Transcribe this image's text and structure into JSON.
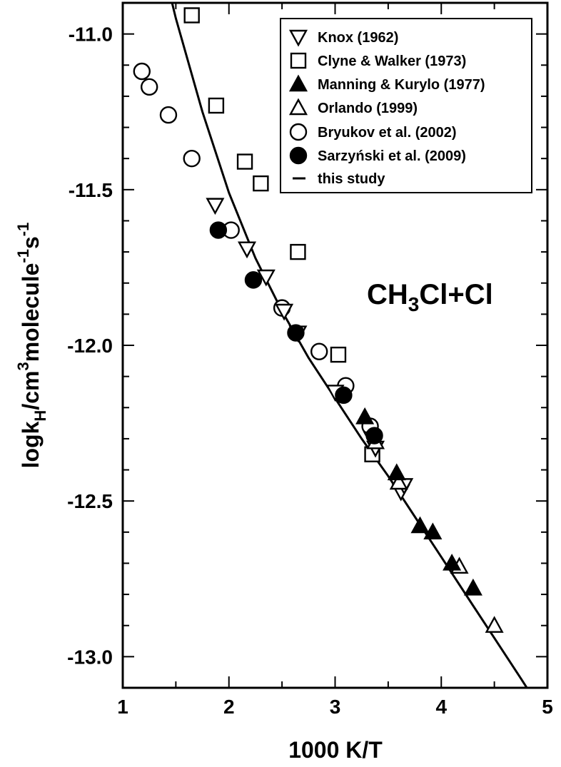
{
  "chart_data": {
    "type": "scatter",
    "xlabel": "1000 K/T",
    "ylabel": {
      "base": "logk",
      "sub": "H",
      "unit": "/cm",
      "sup1": "3",
      "unit2": "molecule",
      "sup2": "-1",
      "unit3": "s",
      "sup3": "-1"
    },
    "xlim": [
      1,
      5
    ],
    "ylim": [
      -13.1,
      -10.9
    ],
    "x_ticks": [
      "1",
      "2",
      "3",
      "4",
      "5"
    ],
    "y_ticks": [
      "-11.0",
      "-11.5",
      "-12.0",
      "-12.5",
      "-13.0"
    ],
    "annotation": {
      "base": "CH",
      "sub": "3",
      "rest": "Cl+Cl"
    },
    "legend_position": "top-right",
    "series": [
      {
        "name": "Knox (1962)",
        "marker": "triangle-down-open",
        "x": [
          1.87,
          2.17,
          2.35,
          2.52,
          2.65,
          3.0,
          3.35,
          3.38,
          3.62,
          3.65
        ],
        "y": [
          -11.55,
          -11.69,
          -11.78,
          -11.89,
          -11.96,
          -12.15,
          -12.3,
          -12.33,
          -12.47,
          -12.45
        ]
      },
      {
        "name": "Clyne & Walker (1973)",
        "marker": "square-open",
        "x": [
          1.65,
          1.88,
          2.15,
          2.3,
          2.65,
          3.03,
          3.35
        ],
        "y": [
          -10.94,
          -11.23,
          -11.41,
          -11.48,
          -11.7,
          -12.03,
          -12.35
        ]
      },
      {
        "name": "Manning & Kurylo (1977)",
        "marker": "triangle-up-filled",
        "x": [
          3.28,
          3.58,
          3.8,
          3.92,
          4.1,
          4.3
        ],
        "y": [
          -12.23,
          -12.41,
          -12.58,
          -12.6,
          -12.7,
          -12.78
        ]
      },
      {
        "name": "Orlando (1999)",
        "marker": "triangle-up-open",
        "x": [
          3.38,
          3.6,
          4.17,
          4.5
        ],
        "y": [
          -12.31,
          -12.44,
          -12.71,
          -12.9
        ]
      },
      {
        "name": "Bryukov et al. (2002)",
        "marker": "circle-open",
        "x": [
          1.18,
          1.25,
          1.43,
          1.65,
          2.02,
          2.5,
          2.85,
          3.1,
          3.33
        ],
        "y": [
          -11.12,
          -11.17,
          -11.26,
          -11.4,
          -11.63,
          -11.88,
          -12.02,
          -12.13,
          -12.26
        ]
      },
      {
        "name": "Sarzyński et al. (2009)",
        "marker": "circle-filled",
        "x": [
          1.9,
          2.23,
          2.63,
          3.08,
          3.37
        ],
        "y": [
          -11.63,
          -11.79,
          -11.96,
          -12.16,
          -12.29
        ]
      },
      {
        "name": "this study",
        "marker": "line",
        "x": [
          1.3,
          1.5,
          1.75,
          2.0,
          2.25,
          2.5,
          2.75,
          3.0,
          3.25,
          3.5,
          3.75,
          4.0,
          4.25,
          4.5,
          4.75,
          4.9
        ],
        "y": [
          -10.67,
          -10.95,
          -11.25,
          -11.51,
          -11.72,
          -11.89,
          -12.04,
          -12.17,
          -12.3,
          -12.42,
          -12.55,
          -12.68,
          -12.81,
          -12.94,
          -13.07,
          -13.15
        ]
      }
    ]
  }
}
